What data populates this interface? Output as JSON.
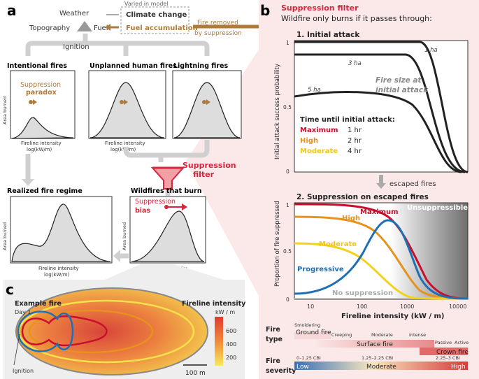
{
  "panel_a": {
    "letter": "a",
    "weather": "Weather",
    "topography": "Topography",
    "fuel": "Fuel",
    "climate_change": "Climate change",
    "varied_in_model": "Varied in model",
    "fuel_accumulation": "Fuel accumulation",
    "fire_removed_1": "Fire removed",
    "fire_removed_2": "by suppression",
    "ignition": "Ignition",
    "intentional": "Intentional fires",
    "unplanned": "Unplanned human fires",
    "lightning": "Lightning fires",
    "suppression_word": "Suppression",
    "paradox_word": "paradox",
    "area_burned": "Area burned",
    "fireline_intensity": "Fireline intensity",
    "log_unit": "log(kW/m)",
    "filter_1": "Suppression",
    "filter_2": "filter",
    "realized": "Realized fire regime",
    "wildfires_burn": "Wildfires that burn",
    "bias_word": "bias"
  },
  "panel_b": {
    "letter": "b",
    "title": "Suppression filter",
    "subtitle": "Wildfire only burns if it passes through:",
    "ia_title": "1. Initial attack",
    "ia_ylabel": "Initial attack success probability",
    "ia_yticks": [
      "1",
      "0.5",
      "0"
    ],
    "size_1ha": "1 ha",
    "size_3ha": "3 ha",
    "size_5ha": "5 ha",
    "fire_size_1": "Fire size at",
    "fire_size_2": "initial attack",
    "time_title": "Time until initial attack:",
    "times": [
      {
        "label": "Maximum",
        "value": "1 hr",
        "color": "#c8102e"
      },
      {
        "label": "High",
        "value": "2 hr",
        "color": "#e8921e"
      },
      {
        "label": "Moderate",
        "value": "4 hr",
        "color": "#f2c418"
      }
    ],
    "escaped": "escaped fires",
    "sup_title": "2. Suppression on escaped fires",
    "sup_ylabel": "Proportion of fire suppressed",
    "sup_yticks": [
      "1",
      "0.5",
      "0"
    ],
    "maximum": "Maximum",
    "high": "High",
    "moderate": "Moderate",
    "progressive": "Progressive",
    "no_suppression": "No suppression",
    "unsuppressible": "Unsuppressible",
    "xticks": [
      "10",
      "100",
      "1000",
      "10000"
    ],
    "xlabel": "Fireline intensity (kW / m)",
    "fire_type_1": "Fire",
    "fire_type_2": "type",
    "smoldering": "Smoldering",
    "ground_fire": "Ground fire",
    "creeping": "Creeping",
    "moderate_ft": "Moderate",
    "intense": "Intense",
    "surface_fire": "Surface fire",
    "passive": "Passive",
    "active": "Active",
    "crown_fire": "Crown fire",
    "severity_1": "Fire",
    "severity_2": "severity",
    "cbi_low": "0–1.25 CBI",
    "cbi_mod": "1.25–2.25 CBI",
    "cbi_high": "2.25–3 CBI",
    "low": "Low",
    "moderate_sev": "Moderate",
    "high_sev": "High"
  },
  "panel_c": {
    "letter": "c",
    "example_fire": "Example fire",
    "day": "Day 1",
    "fireline_intensity": "Fireline intensity",
    "unit": "kW / m",
    "ticks": [
      "600",
      "400",
      "200"
    ],
    "ignition": "Ignition",
    "scale": "100 m"
  },
  "colors": {
    "maximum": "#c8102e",
    "high": "#e8921e",
    "moderate": "#f2c418",
    "progressive": "#1f6fb5",
    "arrow_brown": "#b07a3a",
    "filter_red": "#d7263d"
  }
}
